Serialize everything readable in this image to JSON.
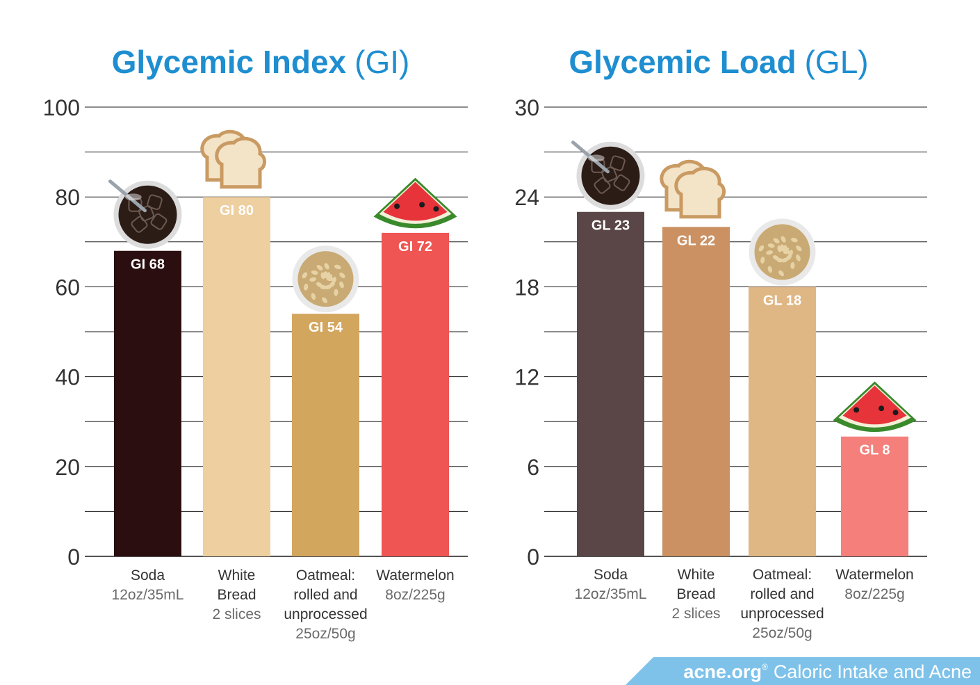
{
  "chart_data": [
    {
      "type": "bar",
      "title": "Glycemic Index",
      "title_suffix": "(GI)",
      "categories": [
        "Soda",
        "White Bread",
        "Oatmeal: rolled and unprocessed",
        "Watermelon"
      ],
      "category_lines": [
        [
          "Soda"
        ],
        [
          "White",
          "Bread"
        ],
        [
          "Oatmeal:",
          "rolled and",
          "unprocessed"
        ],
        [
          "Watermelon"
        ]
      ],
      "category_subs": [
        "12oz/35mL",
        "2 slices",
        "25oz/50g",
        "8oz/225g"
      ],
      "values": [
        68,
        80,
        54,
        72
      ],
      "data_labels": [
        "GI 68",
        "GI 80",
        "GI 54",
        "GI 72"
      ],
      "colors": [
        "#2b0e0f",
        "#edcfa0",
        "#d3a65e",
        "#ef5552"
      ],
      "icons": [
        "soda-glass-icon",
        "bread-slices-icon",
        "oatmeal-bowl-icon",
        "watermelon-slice-icon"
      ],
      "ylim": [
        0,
        100
      ],
      "yticks": [
        0,
        20,
        40,
        60,
        80,
        100
      ],
      "grid": true
    },
    {
      "type": "bar",
      "title": "Glycemic Load",
      "title_suffix": "(GL)",
      "categories": [
        "Soda",
        "White Bread",
        "Oatmeal: rolled and unprocessed",
        "Watermelon"
      ],
      "category_lines": [
        [
          "Soda"
        ],
        [
          "White",
          "Bread"
        ],
        [
          "Oatmeal:",
          "rolled and",
          "unprocessed"
        ],
        [
          "Watermelon"
        ]
      ],
      "category_subs": [
        "12oz/35mL",
        "2 slices",
        "25oz/50g",
        "8oz/225g"
      ],
      "values": [
        23,
        22,
        18,
        8
      ],
      "data_labels": [
        "GL 23",
        "GL 22",
        "GL 18",
        "GL 8"
      ],
      "colors": [
        "#5a4646",
        "#cb9163",
        "#dfb785",
        "#f47f7b"
      ],
      "icons": [
        "soda-glass-icon",
        "bread-slices-icon",
        "oatmeal-bowl-icon",
        "watermelon-slice-icon"
      ],
      "ylim": [
        0,
        30
      ],
      "yticks": [
        0,
        6,
        12,
        18,
        24,
        30
      ],
      "grid": true
    }
  ],
  "footer": {
    "brand": "acne.org",
    "registered": "®",
    "caption": "Caloric Intake and Acne",
    "color": "#7ec2ea"
  }
}
